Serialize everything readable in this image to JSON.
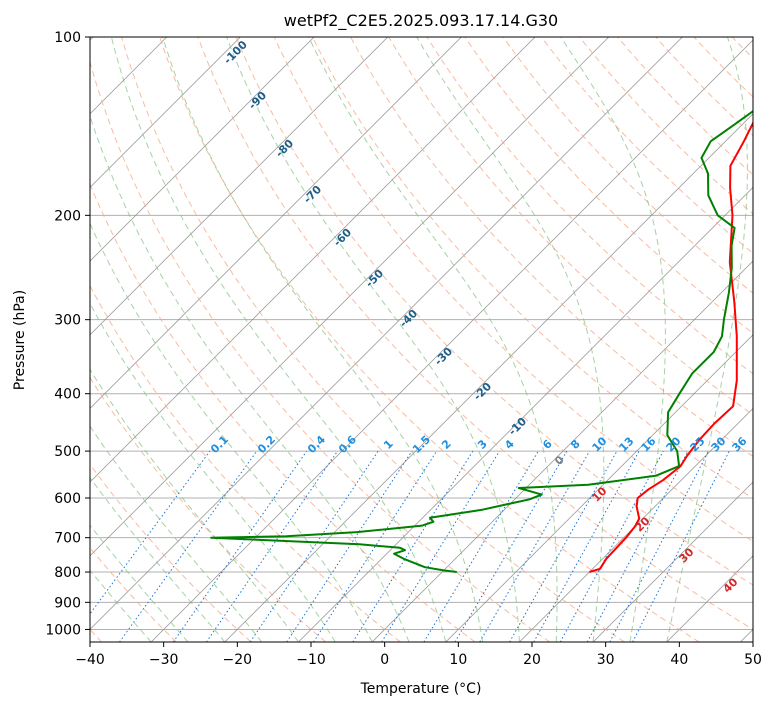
{
  "chart_data": {
    "type": "line",
    "title": "wetPf2_C2E5.2025.093.17.14.G30",
    "xlabel": "Temperature (°C)",
    "ylabel": "Pressure (hPa)",
    "xlim": [
      -40,
      50
    ],
    "ylim": [
      1050,
      100
    ],
    "y_scale": "log",
    "grid": true,
    "x_ticks": [
      -40,
      -30,
      -20,
      -10,
      0,
      10,
      20,
      30,
      40,
      50
    ],
    "y_ticks": [
      100,
      200,
      300,
      400,
      500,
      600,
      700,
      800,
      900,
      1000
    ],
    "series": [
      {
        "color": "#ff0000",
        "points": [
          [
            20,
            800
          ],
          [
            21,
            790
          ],
          [
            20.5,
            760
          ],
          [
            20.3,
            700
          ],
          [
            20,
            670
          ],
          [
            19.5,
            650
          ],
          [
            17.5,
            620
          ],
          [
            16.5,
            600
          ],
          [
            16.8,
            580
          ],
          [
            17.5,
            560
          ],
          [
            18,
            530
          ],
          [
            17.5,
            510
          ],
          [
            17,
            480
          ],
          [
            16.8,
            450
          ],
          [
            17,
            420
          ],
          [
            14,
            380
          ],
          [
            8,
            320
          ],
          [
            3,
            280
          ],
          [
            -3,
            240
          ],
          [
            -9,
            200
          ],
          [
            -13,
            180
          ],
          [
            -16,
            165
          ],
          [
            -17.5,
            150
          ],
          [
            -20,
            130
          ],
          [
            -23,
            110
          ],
          [
            -24,
            100
          ]
        ]
      },
      {
        "color": "#008000",
        "points": [
          [
            2,
            800
          ],
          [
            0,
            795
          ],
          [
            -3,
            785
          ],
          [
            -7,
            760
          ],
          [
            -9,
            745
          ],
          [
            -8,
            735
          ],
          [
            -9,
            728
          ],
          [
            -15,
            718
          ],
          [
            -36,
            700
          ],
          [
            -26,
            696
          ],
          [
            -17,
            685
          ],
          [
            -9,
            668
          ],
          [
            -8,
            658
          ],
          [
            -9,
            648
          ],
          [
            -3,
            628
          ],
          [
            2,
            603
          ],
          [
            3,
            592
          ],
          [
            -1,
            577
          ],
          [
            8,
            570
          ],
          [
            16,
            550
          ],
          [
            17.8,
            530
          ],
          [
            15.5,
            500
          ],
          [
            12,
            470
          ],
          [
            9,
            430
          ],
          [
            8,
            400
          ],
          [
            7,
            370
          ],
          [
            7,
            340
          ],
          [
            6,
            320
          ],
          [
            4,
            300
          ],
          [
            1,
            270
          ],
          [
            -2,
            245
          ],
          [
            -5,
            225
          ],
          [
            -7,
            210
          ],
          [
            -11,
            200
          ],
          [
            -15,
            185
          ],
          [
            -18,
            170
          ],
          [
            -21,
            160
          ],
          [
            -22,
            150
          ],
          [
            -21,
            140
          ],
          [
            -20,
            130
          ],
          [
            -19,
            120
          ],
          [
            -18,
            100
          ]
        ]
      }
    ],
    "dry_adiabat_labels": [
      "-100",
      "-90",
      "-80",
      "-70",
      "-60",
      "-50",
      "-40",
      "-30",
      "-20",
      "-10",
      "0",
      "10",
      "20",
      "30",
      "40"
    ],
    "mixing_ratio_labels": [
      "0.1",
      "0.2",
      "0.4",
      "0.6",
      "1",
      "1.5",
      "2",
      "3",
      "4",
      "6",
      "8",
      "10",
      "13",
      "16",
      "20",
      "25",
      "30",
      "36"
    ],
    "line_colors": {
      "isotherms": "#808080",
      "dry_adiabats": "#f4a582",
      "moist_adiabats": "#7fbf7f",
      "mixing_ratio": "#1f77d4",
      "temperature": "#ff0000",
      "dewpoint": "#008000"
    }
  }
}
